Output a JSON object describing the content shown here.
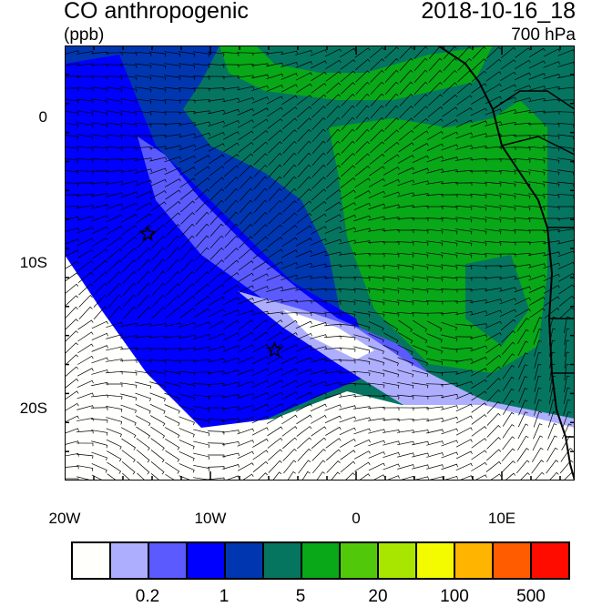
{
  "header": {
    "title": "CO anthropogenic",
    "units": "(ppb)",
    "datetime": "2018-10-16_18",
    "level": "700 hPa"
  },
  "axes": {
    "lat_labels": [
      "0",
      "10S",
      "20S"
    ],
    "lon_labels": [
      "20W",
      "10W",
      "0",
      "10E"
    ],
    "lon_range": [
      -20,
      15
    ],
    "lat_range": [
      -25,
      5
    ]
  },
  "markers": [
    {
      "type": "star",
      "lon": -14.3,
      "lat": -8
    },
    {
      "type": "star",
      "lon": -5.6,
      "lat": -16
    }
  ],
  "colorbar": {
    "colors": [
      "#fffffb",
      "#aeaeff",
      "#5a5aff",
      "#0000ff",
      "#0036b0",
      "#057560",
      "#08a818",
      "#52c80a",
      "#a8e600",
      "#f4fa00",
      "#ffb400",
      "#ff5c00",
      "#ff0c00"
    ],
    "labels": [
      "0.2",
      "1",
      "5",
      "20",
      "100",
      "500"
    ]
  }
}
